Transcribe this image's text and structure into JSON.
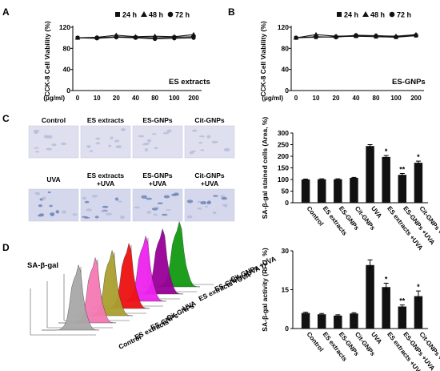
{
  "panels": {
    "A": {
      "letter": "A",
      "label": "ES extracts"
    },
    "B": {
      "letter": "B",
      "label": "ES-GNPs"
    },
    "C": {
      "letter": "C"
    },
    "D": {
      "letter": "D",
      "flow_label": "SA-β-gal"
    }
  },
  "legend_time": [
    "24 h",
    "48 h",
    "72 h"
  ],
  "treatment_labels": [
    "Control",
    "ES extracts",
    "ES-GNPs",
    "Cit-GNPs",
    "UVA",
    "ES extracts +UVA",
    "ES-GNPs +UVA",
    "Cit-GNPs +UVA"
  ],
  "micrograph_labels": [
    "Control",
    "ES extracts",
    "ES-GNPs",
    "Cit-GNPs",
    "UVA",
    "ES extracts +UVA",
    "ES-GNPs +UVA",
    "Cit-GNPs +UVA"
  ],
  "histogram_colors": [
    "#a8a8a8",
    "#f47ab4",
    "#aaa030",
    "#ee1111",
    "#ee22ee",
    "#990099",
    "#119911"
  ],
  "chart_data": [
    {
      "type": "line",
      "panel": "A",
      "ylabel": "CCK-8 Cell Viability (%)",
      "xlabel": "(μg/ml)",
      "ylim": [
        0,
        120
      ],
      "yticks": [
        0,
        40,
        80,
        120
      ],
      "categories": [
        "0",
        "10",
        "20",
        "40",
        "80",
        "100",
        "200"
      ],
      "series": [
        {
          "name": "24 h",
          "marker": "square",
          "values": [
            100,
            100,
            102,
            101,
            100,
            101,
            102
          ]
        },
        {
          "name": "48 h",
          "marker": "triangle",
          "values": [
            100,
            101,
            105,
            102,
            103,
            102,
            106
          ]
        },
        {
          "name": "72 h",
          "marker": "circle",
          "values": [
            100,
            99,
            101,
            100,
            98,
            99,
            100
          ]
        }
      ]
    },
    {
      "type": "line",
      "panel": "B",
      "ylabel": "CCK-8 Cell Viability (%)",
      "xlabel": "(μg/ml)",
      "ylim": [
        0,
        120
      ],
      "yticks": [
        0,
        40,
        80,
        120
      ],
      "categories": [
        "0",
        "10",
        "20",
        "40",
        "80",
        "100",
        "200"
      ],
      "series": [
        {
          "name": "24 h",
          "marker": "square",
          "values": [
            100,
            101,
            102,
            103,
            102,
            101,
            104
          ]
        },
        {
          "name": "48 h",
          "marker": "triangle",
          "values": [
            100,
            106,
            103,
            104,
            104,
            103,
            106
          ]
        },
        {
          "name": "72 h",
          "marker": "circle",
          "values": [
            100,
            102,
            101,
            105,
            104,
            102,
            105
          ]
        }
      ]
    },
    {
      "type": "bar",
      "panel": "C",
      "ylabel": "SA-β-gal stained cells (Area, %)",
      "ylim": [
        0,
        300
      ],
      "yticks": [
        0,
        50,
        100,
        150,
        200,
        250,
        300
      ],
      "categories": [
        "Control",
        "ES extracts",
        "ES-GNPs",
        "Cit-GNPs",
        "UVA",
        "ES extracts +UVA",
        "ES-GNPs +UVA",
        "Cit-GNPs +UVA"
      ],
      "values": [
        100,
        101,
        101,
        107,
        244,
        197,
        120,
        172
      ],
      "errors": [
        2,
        2,
        2,
        2,
        6,
        6,
        6,
        7
      ],
      "annotations": [
        "",
        "",
        "",
        "",
        "",
        "*",
        "**",
        "*"
      ]
    },
    {
      "type": "bar",
      "panel": "D",
      "ylabel": "SA-β-gal activity (RFU, %)",
      "ylim": [
        0,
        30
      ],
      "yticks": [
        0,
        15,
        30
      ],
      "categories": [
        "Control",
        "ES extracts",
        "ES-GNPs",
        "Cit-GNPs",
        "UVA",
        "ES extracts +UVA",
        "ES-GNPs +UVA",
        "Cit-GNPs +UVA"
      ],
      "values": [
        6.0,
        5.5,
        5.0,
        5.8,
        24.5,
        16.0,
        8.5,
        12.5
      ],
      "errors": [
        0.3,
        0.3,
        0.3,
        0.3,
        2.0,
        1.5,
        0.6,
        2.0
      ],
      "annotations": [
        "",
        "",
        "",
        "",
        "",
        "*",
        "**",
        "*"
      ]
    }
  ]
}
